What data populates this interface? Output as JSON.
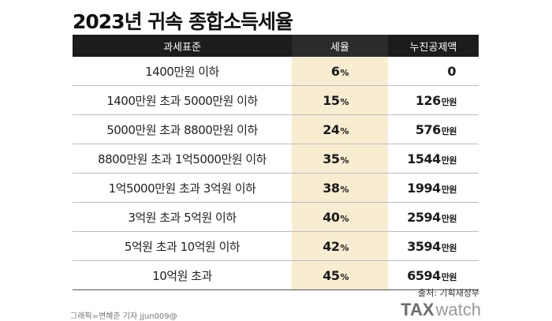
{
  "title": "2023년 귀속 종합소득세율",
  "table": {
    "headers": [
      "과세표준",
      "세율",
      "누진공제액"
    ],
    "rows": [
      {
        "bracket": "1400만원 이하",
        "rate": "6",
        "deduction": "0",
        "unit": ""
      },
      {
        "bracket": "1400만원 초과 5000만원 이하",
        "rate": "15",
        "deduction": "126",
        "unit": "만원"
      },
      {
        "bracket": "5000만원 초과 8800만원 이하",
        "rate": "24",
        "deduction": "576",
        "unit": "만원"
      },
      {
        "bracket": "8800만원 초과 1억5000만원 이하",
        "rate": "35",
        "deduction": "1544",
        "unit": "만원"
      },
      {
        "bracket": "1억5000만원 초과 3억원 이하",
        "rate": "38",
        "deduction": "1994",
        "unit": "만원"
      },
      {
        "bracket": "3억원 초과 5억원 이하",
        "rate": "40",
        "deduction": "2594",
        "unit": "만원"
      },
      {
        "bracket": "5억원 초과 10억원 이하",
        "rate": "42",
        "deduction": "3594",
        "unit": "만원"
      },
      {
        "bracket": "10억원 초과",
        "rate": "45",
        "deduction": "6594",
        "unit": "만원"
      }
    ],
    "percent_sign": "%"
  },
  "source": "출처: 기획재정부",
  "credit": "그래픽=변혜준 기자 jjun009@",
  "logo": {
    "bold": "TAX",
    "light": "watch"
  },
  "colors": {
    "header_bg": "#1c1c1c",
    "rate_column_bg": "#f8ecd1"
  }
}
